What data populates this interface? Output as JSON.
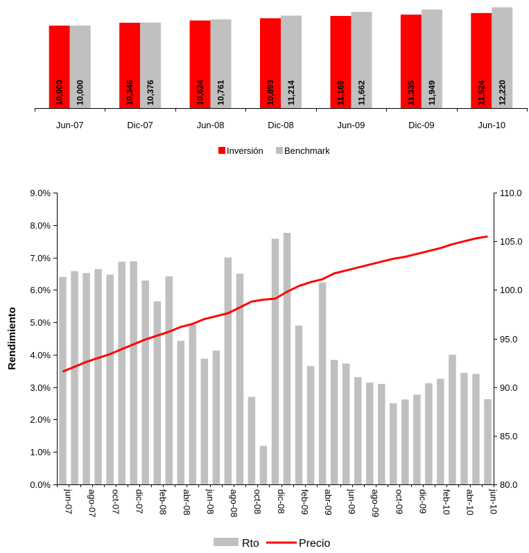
{
  "chart_data": [
    {
      "type": "bar",
      "categories": [
        "Jun-07",
        "Dic-07",
        "Jun-08",
        "Dic-08",
        "Jun-09",
        "Dic-09",
        "Jun-10"
      ],
      "series": [
        {
          "name": "Inversión",
          "color": "#ff0000",
          "values": [
            10000,
            10346,
            10624,
            10893,
            11169,
            11335,
            11524
          ],
          "labels": [
            "10,000",
            "10,346",
            "10,624",
            "10,893",
            "11,169",
            "11,335",
            "11,524"
          ]
        },
        {
          "name": "Benchmark",
          "color": "#c0c0c0",
          "values": [
            10000,
            10376,
            10761,
            11214,
            11662,
            11949,
            12220
          ],
          "labels": [
            "10,000",
            "10,376",
            "10,761",
            "11,214",
            "11,662",
            "11,949",
            "12,220"
          ]
        }
      ],
      "ylim": [
        0,
        12600
      ],
      "legend": "bottom-center",
      "grid": false
    },
    {
      "type": "bar+line",
      "x": [
        "jun-07",
        "jul-07",
        "ago-07",
        "sep-07",
        "oct-07",
        "nov-07",
        "dic-07",
        "ene-08",
        "feb-08",
        "mar-08",
        "abr-08",
        "may-08",
        "jun-08",
        "jul-08",
        "ago-08",
        "sep-08",
        "oct-08",
        "nov-08",
        "dic-08",
        "ene-09",
        "feb-09",
        "mar-09",
        "abr-09",
        "may-09",
        "jun-09",
        "jul-09",
        "ago-09",
        "sep-09",
        "oct-09",
        "nov-09",
        "dic-09",
        "ene-10",
        "feb-10",
        "mar-10",
        "abr-10",
        "may-10",
        "jun-10"
      ],
      "x_tick_labels": [
        "jun-07",
        "ago-07",
        "oct-07",
        "dic-07",
        "feb-08",
        "abr-08",
        "jun-08",
        "ago-08",
        "oct-08",
        "dic-08",
        "feb-09",
        "abr-09",
        "jun-09",
        "ago-09",
        "oct-09",
        "dic-09",
        "feb-10",
        "abr-10",
        "jun-10"
      ],
      "series": [
        {
          "name": "Rto",
          "kind": "bar",
          "axis": "left",
          "color": "#c0c0c0",
          "values": [
            6.4,
            6.58,
            6.52,
            6.64,
            6.47,
            6.87,
            6.88,
            6.29,
            5.65,
            6.42,
            4.43,
            4.92,
            3.88,
            4.13,
            7.0,
            6.5,
            2.7,
            1.19,
            7.58,
            7.76,
            4.9,
            3.65,
            6.23,
            3.84,
            3.73,
            3.31,
            3.14,
            3.1,
            2.5,
            2.62,
            2.77,
            3.12,
            3.26,
            4.0,
            3.44,
            3.41,
            2.63
          ]
        },
        {
          "name": "Precio",
          "kind": "line",
          "axis": "right",
          "color": "#ff0000",
          "values": [
            91.6,
            92.1,
            92.6,
            93.0,
            93.4,
            93.9,
            94.4,
            94.9,
            95.3,
            95.7,
            96.2,
            96.5,
            97.0,
            97.3,
            97.6,
            98.2,
            98.8,
            99.0,
            99.1,
            99.8,
            100.4,
            100.8,
            101.1,
            101.7,
            102.0,
            102.3,
            102.6,
            102.9,
            103.2,
            103.4,
            103.7,
            104.0,
            104.3,
            104.7,
            105.0,
            105.3,
            105.5
          ]
        }
      ],
      "yleft": {
        "label": "Rendimiento",
        "ylim": [
          0,
          9
        ],
        "ticks": [
          "0.0%",
          "1.0%",
          "2.0%",
          "3.0%",
          "4.0%",
          "5.0%",
          "6.0%",
          "7.0%",
          "8.0%",
          "9.0%"
        ]
      },
      "yright": {
        "ylim": [
          80,
          110
        ],
        "ticks": [
          "80.0",
          "85.0",
          "90.0",
          "95.0",
          "100.0",
          "105.0",
          "110.0"
        ]
      },
      "legend": "bottom-center",
      "grid": false
    }
  ]
}
